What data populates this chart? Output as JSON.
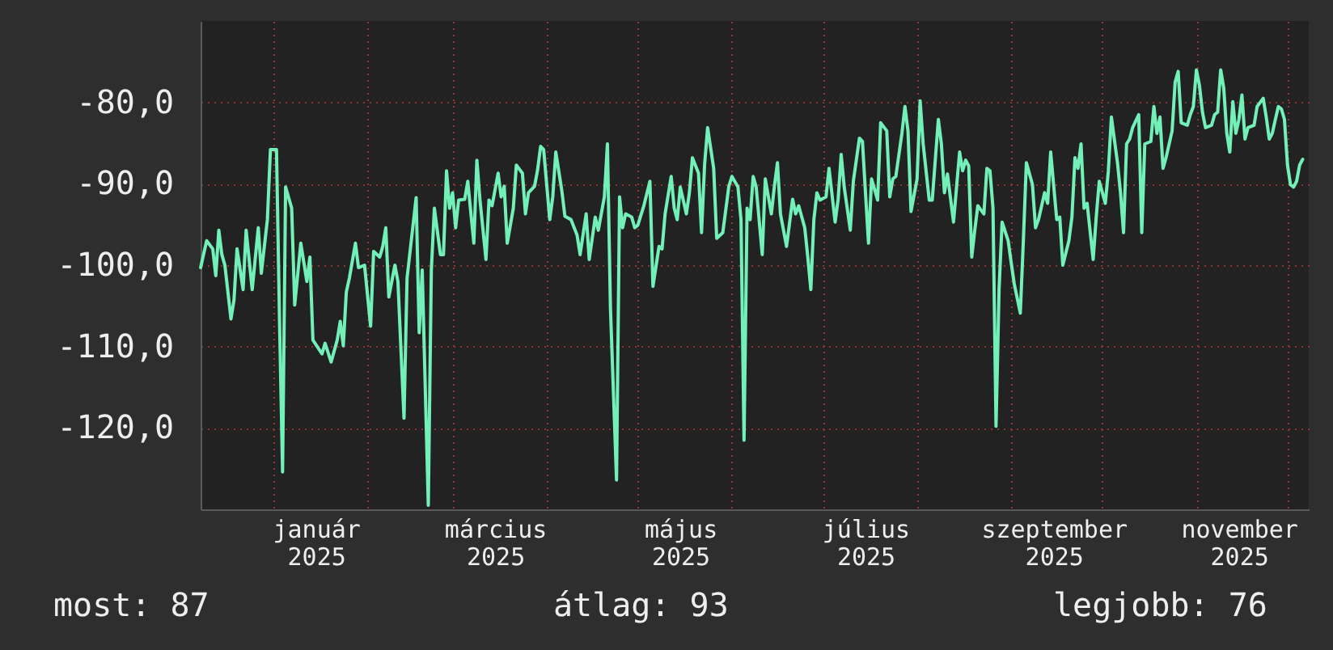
{
  "chart_data": {
    "type": "line",
    "color": "#72f0b8",
    "x": [
      "2024-12-08",
      "2024-12-10",
      "2024-12-12",
      "2024-12-13",
      "2024-12-14",
      "2024-12-15",
      "2024-12-16",
      "2024-12-18",
      "2024-12-19",
      "2024-12-20",
      "2024-12-22",
      "2024-12-23",
      "2024-12-25",
      "2024-12-27",
      "2024-12-28",
      "2024-12-30",
      "2024-12-31",
      "2025-01-02",
      "2025-01-03",
      "2025-01-04",
      "2025-01-05",
      "2025-01-07",
      "2025-01-08",
      "2025-01-10",
      "2025-01-12",
      "2025-01-13",
      "2025-01-14",
      "2025-01-17",
      "2025-01-18",
      "2025-01-20",
      "2025-01-22",
      "2025-01-23",
      "2025-01-24",
      "2025-01-25",
      "2025-01-26",
      "2025-01-28",
      "2025-01-29",
      "2025-01-31",
      "2025-02-02",
      "2025-02-03",
      "2025-02-05",
      "2025-02-06",
      "2025-02-07",
      "2025-02-08",
      "2025-02-10",
      "2025-02-11",
      "2025-02-13",
      "2025-02-14",
      "2025-02-15",
      "2025-02-17",
      "2025-02-18",
      "2025-02-19",
      "2025-02-21",
      "2025-02-22",
      "2025-02-23",
      "2025-02-25",
      "2025-02-26",
      "2025-02-27",
      "2025-02-28",
      "2025-03-01",
      "2025-03-02",
      "2025-03-03",
      "2025-03-05",
      "2025-03-06",
      "2025-03-08",
      "2025-03-09",
      "2025-03-10",
      "2025-03-12",
      "2025-03-13",
      "2025-03-14",
      "2025-03-16",
      "2025-03-17",
      "2025-03-18",
      "2025-03-19",
      "2025-03-21",
      "2025-03-22",
      "2025-03-24",
      "2025-03-25",
      "2025-03-26",
      "2025-03-28",
      "2025-03-29",
      "2025-03-30",
      "2025-03-31",
      "2025-04-02",
      "2025-04-03",
      "2025-04-04",
      "2025-04-06",
      "2025-04-07",
      "2025-04-09",
      "2025-04-11",
      "2025-04-12",
      "2025-04-14",
      "2025-04-15",
      "2025-04-17",
      "2025-04-18",
      "2025-04-20",
      "2025-04-21",
      "2025-04-22",
      "2025-04-24",
      "2025-04-25",
      "2025-04-26",
      "2025-04-27",
      "2025-04-29",
      "2025-04-30",
      "2025-05-01",
      "2025-05-03",
      "2025-05-05",
      "2025-05-06",
      "2025-05-08",
      "2025-05-09",
      "2025-05-10",
      "2025-05-12",
      "2025-05-13",
      "2025-05-14",
      "2025-05-15",
      "2025-05-17",
      "2025-05-18",
      "2025-05-19",
      "2025-05-21",
      "2025-05-22",
      "2025-05-23",
      "2025-05-24",
      "2025-05-26",
      "2025-05-27",
      "2025-05-29",
      "2025-05-31",
      "2025-06-01",
      "2025-06-03",
      "2025-06-04",
      "2025-06-05",
      "2025-06-06",
      "2025-06-07",
      "2025-06-08",
      "2025-06-09",
      "2025-06-11",
      "2025-06-12",
      "2025-06-14",
      "2025-06-15",
      "2025-06-16",
      "2025-06-17",
      "2025-06-19",
      "2025-06-21",
      "2025-06-22",
      "2025-06-23",
      "2025-06-25",
      "2025-06-26",
      "2025-06-27",
      "2025-06-28",
      "2025-06-29",
      "2025-06-30",
      "2025-07-02",
      "2025-07-03",
      "2025-07-05",
      "2025-07-06",
      "2025-07-07",
      "2025-07-08",
      "2025-07-10",
      "2025-07-11",
      "2025-07-13",
      "2025-07-14",
      "2025-07-15",
      "2025-07-16",
      "2025-07-17",
      "2025-07-19",
      "2025-07-20",
      "2025-07-22",
      "2025-07-23",
      "2025-07-24",
      "2025-07-25",
      "2025-07-27",
      "2025-07-28",
      "2025-07-29",
      "2025-07-30",
      "2025-08-01",
      "2025-08-02",
      "2025-08-03",
      "2025-08-05",
      "2025-08-06",
      "2025-08-08",
      "2025-08-09",
      "2025-08-10",
      "2025-08-11",
      "2025-08-13",
      "2025-08-15",
      "2025-08-16",
      "2025-08-17",
      "2025-08-18",
      "2025-08-19",
      "2025-08-20",
      "2025-08-21",
      "2025-08-23",
      "2025-08-24",
      "2025-08-25",
      "2025-08-26",
      "2025-08-27",
      "2025-08-28",
      "2025-08-29",
      "2025-08-31",
      "2025-09-01",
      "2025-09-02",
      "2025-09-04",
      "2025-09-05",
      "2025-09-06",
      "2025-09-08",
      "2025-09-09",
      "2025-09-10",
      "2025-09-12",
      "2025-09-13",
      "2025-09-14",
      "2025-09-16",
      "2025-09-17",
      "2025-09-18",
      "2025-09-20",
      "2025-09-21",
      "2025-09-22",
      "2025-09-23",
      "2025-09-24",
      "2025-09-25",
      "2025-09-26",
      "2025-09-28",
      "2025-09-29",
      "2025-09-30",
      "2025-10-02",
      "2025-10-03",
      "2025-10-04",
      "2025-10-06",
      "2025-10-07",
      "2025-10-08",
      "2025-10-09",
      "2025-10-10",
      "2025-10-11",
      "2025-10-13",
      "2025-10-14",
      "2025-10-15",
      "2025-10-17",
      "2025-10-18",
      "2025-10-19",
      "2025-10-20",
      "2025-10-21",
      "2025-10-22",
      "2025-10-24",
      "2025-10-25",
      "2025-10-26",
      "2025-10-27",
      "2025-10-29",
      "2025-10-30",
      "2025-10-31",
      "2025-11-01",
      "2025-11-02",
      "2025-11-03",
      "2025-11-04",
      "2025-11-06",
      "2025-11-07",
      "2025-11-08",
      "2025-11-09",
      "2025-11-10",
      "2025-11-11",
      "2025-11-12",
      "2025-11-13",
      "2025-11-14",
      "2025-11-15",
      "2025-11-16",
      "2025-11-17",
      "2025-11-18",
      "2025-11-20",
      "2025-11-21",
      "2025-11-23",
      "2025-11-24",
      "2025-11-25",
      "2025-11-26",
      "2025-11-27",
      "2025-11-28",
      "2025-11-29",
      "2025-11-30",
      "2025-12-01",
      "2025-12-02",
      "2025-12-03",
      "2025-12-04",
      "2025-12-05",
      "2025-12-06"
    ],
    "values": [
      -100.3,
      -97.0,
      -98.0,
      -101.3,
      -95.7,
      -98.7,
      -100.0,
      -106.6,
      -104.3,
      -98.0,
      -103.0,
      -95.7,
      -103.0,
      -95.4,
      -101.0,
      -94.4,
      -85.8,
      -85.8,
      -106.9,
      -125.4,
      -90.4,
      -93.0,
      -104.9,
      -97.3,
      -102.0,
      -99.0,
      -109.2,
      -110.9,
      -109.6,
      -111.9,
      -109.2,
      -106.9,
      -109.9,
      -103.3,
      -101.6,
      -97.3,
      -100.3,
      -100.0,
      -107.5,
      -98.3,
      -99.0,
      -97.7,
      -95.4,
      -103.9,
      -100.0,
      -102.0,
      -118.8,
      -101.6,
      -98.3,
      -91.7,
      -108.3,
      -100.6,
      -129.5,
      -100.6,
      -93.0,
      -98.7,
      -98.7,
      -88.4,
      -93.0,
      -91.1,
      -95.4,
      -92.0,
      -91.9,
      -89.7,
      -97.3,
      -87.1,
      -91.9,
      -99.3,
      -92.0,
      -92.7,
      -88.7,
      -91.6,
      -90.3,
      -97.3,
      -93.0,
      -87.7,
      -88.7,
      -93.7,
      -91.1,
      -90.3,
      -88.3,
      -85.4,
      -85.8,
      -94.4,
      -91.6,
      -86.1,
      -90.9,
      -94.0,
      -94.4,
      -96.3,
      -98.7,
      -93.7,
      -99.3,
      -94.1,
      -95.7,
      -91.6,
      -85.1,
      -105.3,
      -126.4,
      -91.6,
      -95.4,
      -93.7,
      -94.1,
      -95.4,
      -95.1,
      -92.7,
      -89.7,
      -102.6,
      -97.7,
      -98.0,
      -93.7,
      -89.1,
      -93.0,
      -94.4,
      -90.4,
      -93.7,
      -91.1,
      -86.8,
      -88.7,
      -96.0,
      -87.7,
      -83.1,
      -88.1,
      -96.7,
      -96.0,
      -90.3,
      -89.1,
      -90.4,
      -94.4,
      -121.5,
      -93.0,
      -94.4,
      -89.1,
      -90.4,
      -98.7,
      -89.4,
      -93.7,
      -90.3,
      -87.4,
      -93.7,
      -97.7,
      -91.9,
      -93.7,
      -92.7,
      -95.4,
      -99.0,
      -103.0,
      -94.4,
      -91.1,
      -92.0,
      -91.6,
      -88.1,
      -94.7,
      -91.9,
      -86.4,
      -90.4,
      -95.7,
      -89.7,
      -84.4,
      -84.8,
      -91.1,
      -97.3,
      -89.4,
      -92.0,
      -82.5,
      -83.5,
      -91.6,
      -89.4,
      -89.1,
      -83.8,
      -80.5,
      -83.5,
      -93.4,
      -89.4,
      -79.8,
      -85.1,
      -92.0,
      -92.0,
      -82.1,
      -85.1,
      -91.1,
      -88.8,
      -94.7,
      -86.1,
      -88.4,
      -87.1,
      -87.8,
      -99.0,
      -95.7,
      -92.7,
      -93.7,
      -88.1,
      -88.4,
      -93.0,
      -119.8,
      -103.0,
      -94.7,
      -97.0,
      -99.7,
      -102.3,
      -105.9,
      -97.0,
      -87.4,
      -90.1,
      -95.4,
      -94.4,
      -91.1,
      -92.4,
      -86.1,
      -94.4,
      -94.1,
      -100.0,
      -97.0,
      -94.1,
      -86.8,
      -88.1,
      -85.1,
      -93.0,
      -92.4,
      -99.3,
      -94.1,
      -89.7,
      -92.4,
      -88.4,
      -81.8,
      -87.4,
      -91.1,
      -96.0,
      -85.1,
      -84.5,
      -83.1,
      -81.5,
      -96.0,
      -85.1,
      -84.8,
      -80.5,
      -83.8,
      -81.8,
      -88.1,
      -86.8,
      -83.5,
      -77.5,
      -76.2,
      -82.5,
      -82.8,
      -81.5,
      -80.5,
      -76.0,
      -77.9,
      -81.2,
      -83.1,
      -82.8,
      -81.5,
      -81.2,
      -76.0,
      -78.2,
      -83.8,
      -86.1,
      -79.9,
      -83.8,
      -82.1,
      -79.1,
      -84.5,
      -83.1,
      -82.8,
      -80.5,
      -79.5,
      -81.8,
      -84.5,
      -83.8,
      -82.1,
      -80.5,
      -80.8,
      -82.1,
      -87.7,
      -90.1,
      -90.4,
      -89.7,
      -87.7,
      -87.0
    ],
    "xlim": [
      "2024-12-08",
      "2025-12-08"
    ],
    "ylim": [
      -130,
      -70
    ],
    "xticks": [
      {
        "value": "2025-01-01",
        "label": null
      },
      {
        "value": "2025-01-15",
        "label": "január 2025"
      },
      {
        "value": "2025-02-01",
        "label": null
      },
      {
        "value": "2025-03-01",
        "label": null
      },
      {
        "value": "2025-03-15",
        "label": "március 2025"
      },
      {
        "value": "2025-04-01",
        "label": null
      },
      {
        "value": "2025-05-01",
        "label": null
      },
      {
        "value": "2025-05-15",
        "label": "május 2025"
      },
      {
        "value": "2025-06-01",
        "label": null
      },
      {
        "value": "2025-07-01",
        "label": null
      },
      {
        "value": "2025-07-15",
        "label": "július 2025"
      },
      {
        "value": "2025-08-01",
        "label": null
      },
      {
        "value": "2025-09-01",
        "label": null
      },
      {
        "value": "2025-09-15",
        "label": "szeptember 2025"
      },
      {
        "value": "2025-10-01",
        "label": null
      },
      {
        "value": "2025-11-01",
        "label": null
      },
      {
        "value": "2025-11-15",
        "label": "november 2025"
      },
      {
        "value": "2025-12-01",
        "label": null
      }
    ],
    "yticks": [
      {
        "value": -120,
        "label": "-120,0"
      },
      {
        "value": -110,
        "label": "-110,0"
      },
      {
        "value": -100,
        "label": "-100,0"
      },
      {
        "value": -90,
        "label": "-90,0"
      },
      {
        "value": -80,
        "label": "-80,0"
      }
    ],
    "grid": true,
    "annotations": [
      "most: 87",
      "átlag: 93",
      "legjobb: 76"
    ]
  }
}
